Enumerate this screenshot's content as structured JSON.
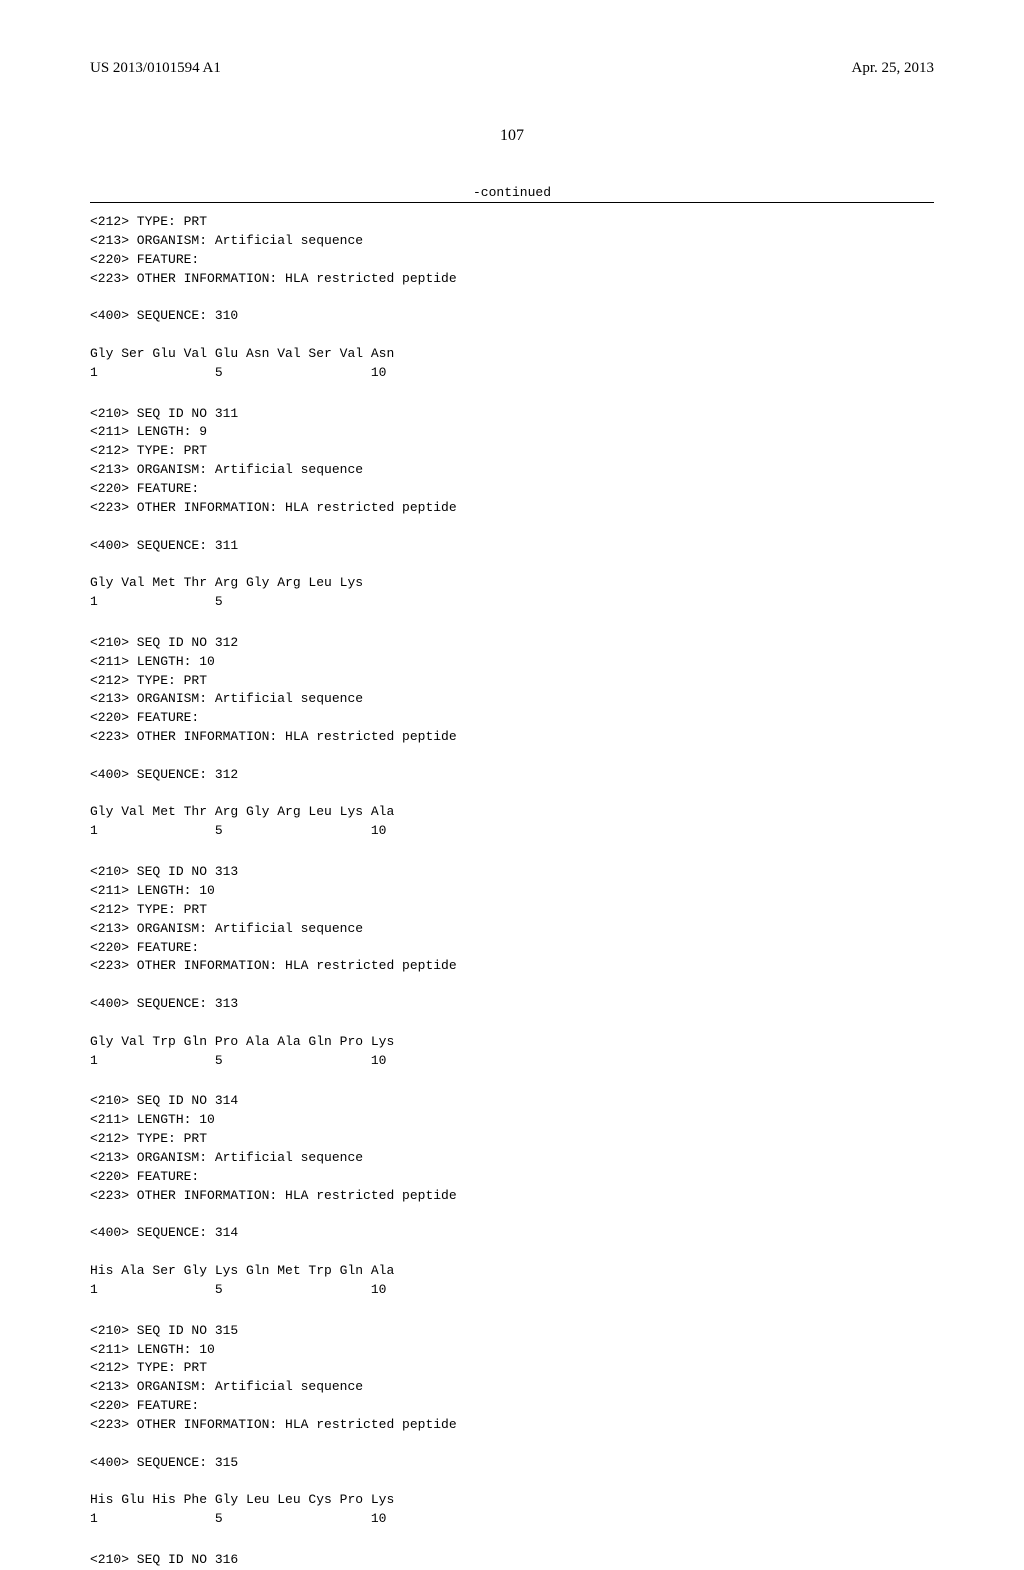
{
  "header": {
    "pub_number": "US 2013/0101594 A1",
    "pub_date": "Apr. 25, 2013"
  },
  "page_number": "107",
  "continued_label": "-continued",
  "blocks": [
    {
      "lines": [
        "<212> TYPE: PRT",
        "<213> ORGANISM: Artificial sequence",
        "<220> FEATURE:",
        "<223> OTHER INFORMATION: HLA restricted peptide",
        "",
        "<400> SEQUENCE: 310",
        "",
        "Gly Ser Glu Val Glu Asn Val Ser Val Asn",
        "1               5                   10"
      ]
    },
    {
      "lines": [
        "<210> SEQ ID NO 311",
        "<211> LENGTH: 9",
        "<212> TYPE: PRT",
        "<213> ORGANISM: Artificial sequence",
        "<220> FEATURE:",
        "<223> OTHER INFORMATION: HLA restricted peptide",
        "",
        "<400> SEQUENCE: 311",
        "",
        "Gly Val Met Thr Arg Gly Arg Leu Lys",
        "1               5"
      ]
    },
    {
      "lines": [
        "<210> SEQ ID NO 312",
        "<211> LENGTH: 10",
        "<212> TYPE: PRT",
        "<213> ORGANISM: Artificial sequence",
        "<220> FEATURE:",
        "<223> OTHER INFORMATION: HLA restricted peptide",
        "",
        "<400> SEQUENCE: 312",
        "",
        "Gly Val Met Thr Arg Gly Arg Leu Lys Ala",
        "1               5                   10"
      ]
    },
    {
      "lines": [
        "<210> SEQ ID NO 313",
        "<211> LENGTH: 10",
        "<212> TYPE: PRT",
        "<213> ORGANISM: Artificial sequence",
        "<220> FEATURE:",
        "<223> OTHER INFORMATION: HLA restricted peptide",
        "",
        "<400> SEQUENCE: 313",
        "",
        "Gly Val Trp Gln Pro Ala Ala Gln Pro Lys",
        "1               5                   10"
      ]
    },
    {
      "lines": [
        "<210> SEQ ID NO 314",
        "<211> LENGTH: 10",
        "<212> TYPE: PRT",
        "<213> ORGANISM: Artificial sequence",
        "<220> FEATURE:",
        "<223> OTHER INFORMATION: HLA restricted peptide",
        "",
        "<400> SEQUENCE: 314",
        "",
        "His Ala Ser Gly Lys Gln Met Trp Gln Ala",
        "1               5                   10"
      ]
    },
    {
      "lines": [
        "<210> SEQ ID NO 315",
        "<211> LENGTH: 10",
        "<212> TYPE: PRT",
        "<213> ORGANISM: Artificial sequence",
        "<220> FEATURE:",
        "<223> OTHER INFORMATION: HLA restricted peptide",
        "",
        "<400> SEQUENCE: 315",
        "",
        "His Glu His Phe Gly Leu Leu Cys Pro Lys",
        "1               5                   10"
      ]
    },
    {
      "lines": [
        "<210> SEQ ID NO 316"
      ]
    }
  ]
}
